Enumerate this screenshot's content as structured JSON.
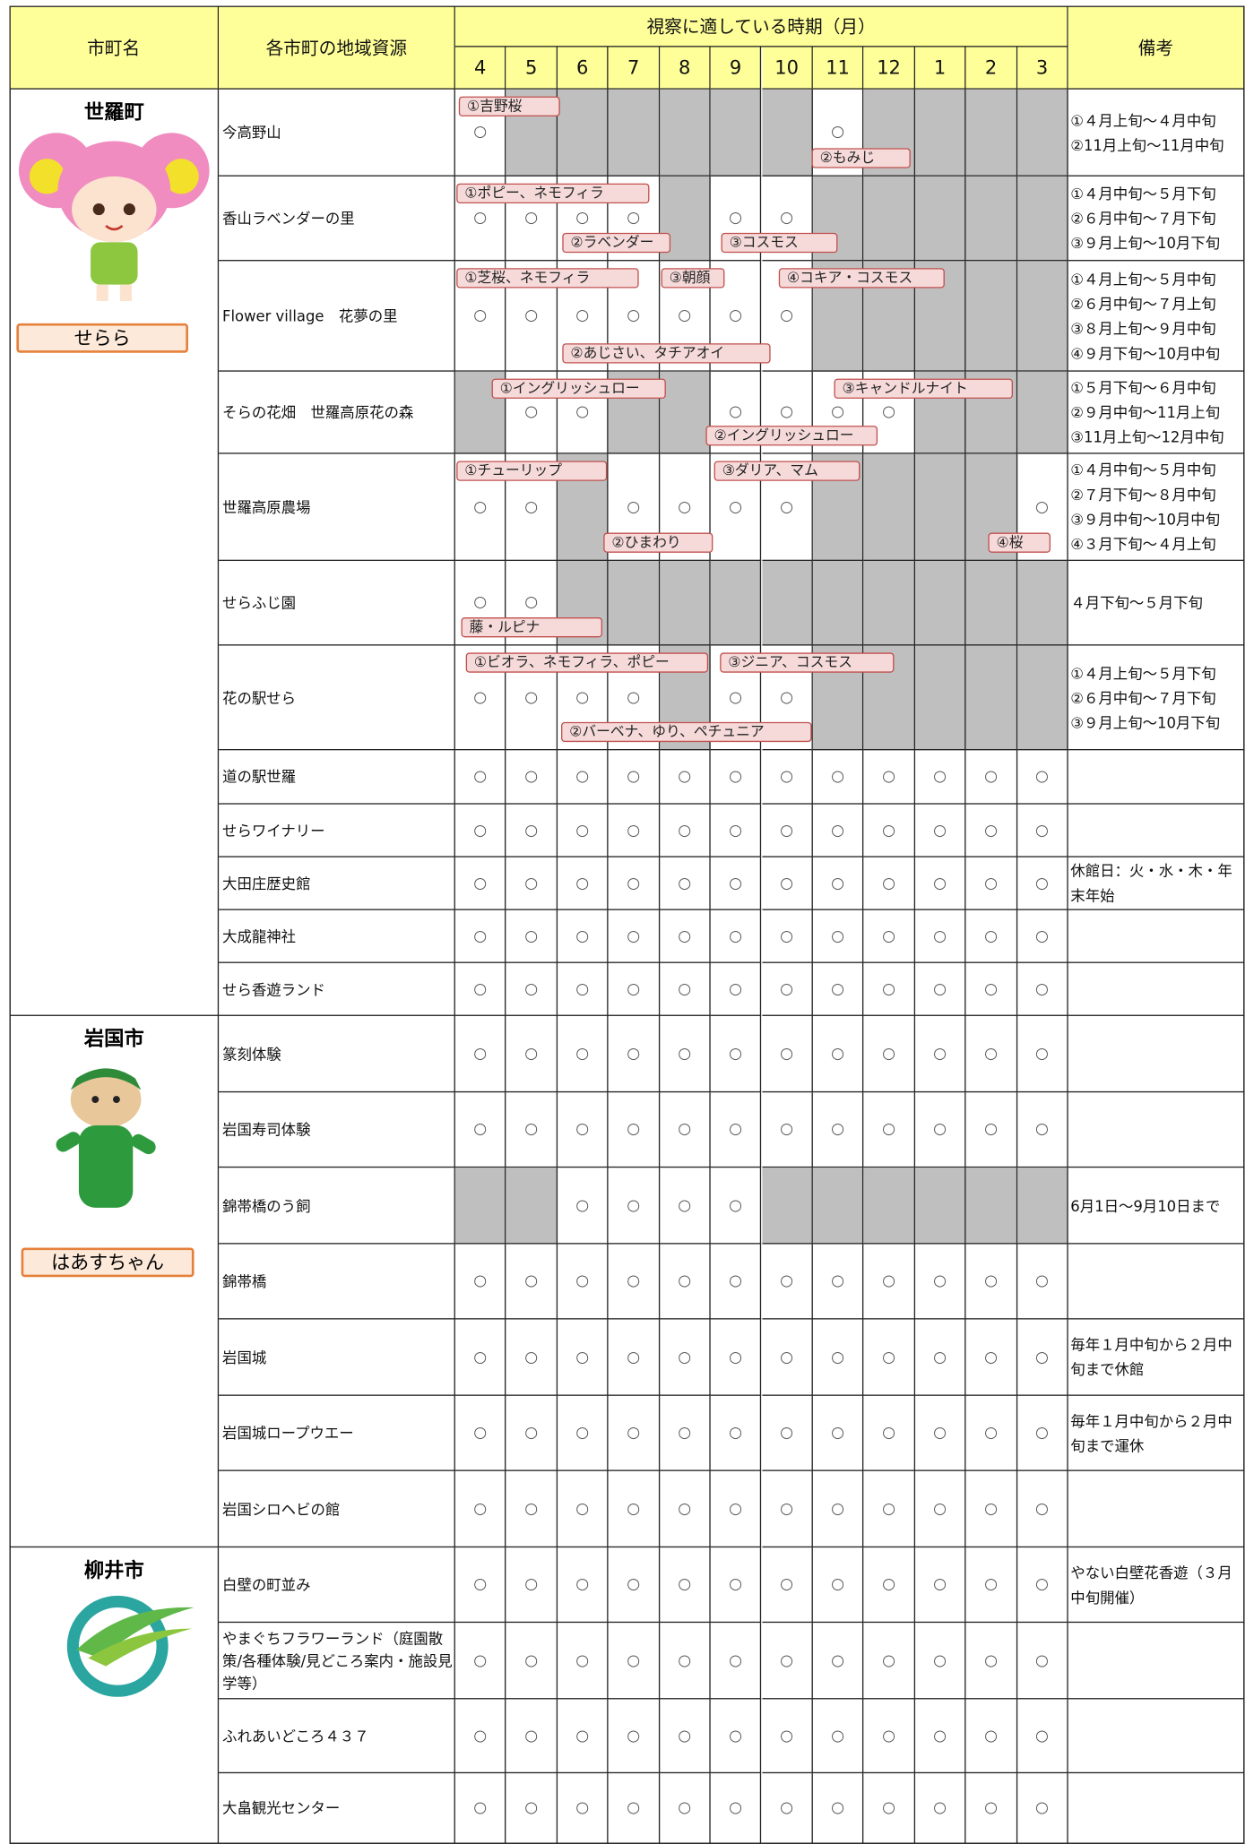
{
  "header": {
    "city": "市町名",
    "resource": "各市町の地域資源",
    "period": "視察に適している時期（月）",
    "months": [
      "4",
      "5",
      "6",
      "7",
      "8",
      "9",
      "10",
      "11",
      "12",
      "1",
      "2",
      "3"
    ],
    "remarks": "備考"
  },
  "cities": [
    {
      "name": "世羅町",
      "mascot": "せらら",
      "rows": [
        {
          "name": "今高野山",
          "marks": [
            "○",
            null,
            null,
            null,
            null,
            null,
            null,
            "○",
            null,
            null,
            null,
            null
          ],
          "shaded": [
            false,
            true,
            true,
            true,
            true,
            true,
            true,
            false,
            true,
            true,
            true,
            true
          ],
          "labels": [
            "①吉野桜",
            "②もみじ"
          ],
          "remarks": [
            "①４月上旬～４月中旬",
            "②11月上旬～11月中旬"
          ]
        },
        {
          "name": "香山ラベンダーの里",
          "marks": [
            "○",
            "○",
            "○",
            "○",
            null,
            "○",
            "○",
            null,
            null,
            null,
            null,
            null
          ],
          "shaded": [
            false,
            false,
            false,
            false,
            true,
            false,
            false,
            true,
            true,
            true,
            true,
            true
          ],
          "labels": [
            "①ポピー、ネモフィラ",
            "②ラベンダー",
            "③コスモス"
          ],
          "remarks": [
            "①４月中旬～５月下旬",
            "②６月中旬～７月下旬",
            "③９月上旬～10月下旬"
          ]
        },
        {
          "name": "Flower village　花夢の里",
          "marks": [
            "○",
            "○",
            "○",
            "○",
            "○",
            "○",
            "○",
            null,
            null,
            null,
            null,
            null
          ],
          "shaded": [
            false,
            false,
            false,
            false,
            false,
            false,
            false,
            true,
            true,
            true,
            true,
            true
          ],
          "labels": [
            "①芝桜、ネモフィラ",
            "②あじさい、タチアオイ",
            "③朝顔",
            "④コキア・コスモス"
          ],
          "remarks": [
            "①４月上旬～５月中旬",
            "②６月中旬～７月上旬",
            "③８月上旬～９月中旬",
            "④９月下旬～10月中旬"
          ]
        },
        {
          "name": "そらの花畑　世羅高原花の森",
          "marks": [
            null,
            "○",
            "○",
            null,
            null,
            "○",
            "○",
            "○",
            "○",
            null,
            null,
            null
          ],
          "shaded": [
            true,
            false,
            false,
            true,
            true,
            false,
            false,
            false,
            false,
            true,
            true,
            true
          ],
          "labels": [
            "①イングリッシュロー",
            "②イングリッシュロー",
            "③キャンドルナイト"
          ],
          "remarks": [
            "①５月下旬～６月中旬",
            "②９月中旬～11月上旬",
            "③11月上旬～12月中旬"
          ]
        },
        {
          "name": "世羅高原農場",
          "marks": [
            "○",
            "○",
            null,
            "○",
            "○",
            "○",
            "○",
            null,
            null,
            null,
            null,
            "○"
          ],
          "shaded": [
            false,
            false,
            true,
            false,
            false,
            false,
            false,
            true,
            true,
            true,
            true,
            false
          ],
          "labels": [
            "①チューリップ",
            "②ひまわり",
            "③ダリア、マム",
            "④桜"
          ],
          "remarks": [
            "①４月中旬～５月中旬",
            "②７月下旬～８月中旬",
            "③９月中旬～10月中旬",
            "④３月下旬～４月上旬"
          ]
        },
        {
          "name": "せらふじ園",
          "marks": [
            "○",
            "○",
            null,
            null,
            null,
            null,
            null,
            null,
            null,
            null,
            null,
            null
          ],
          "shaded": [
            false,
            false,
            true,
            true,
            true,
            true,
            true,
            true,
            true,
            true,
            true,
            true
          ],
          "labels": [
            "藤・ルピナ"
          ],
          "remarks": [
            "４月下旬～５月下旬"
          ]
        },
        {
          "name": "花の駅せら",
          "marks": [
            "○",
            "○",
            "○",
            "○",
            null,
            "○",
            "○",
            null,
            null,
            null,
            null,
            null
          ],
          "shaded": [
            false,
            false,
            false,
            false,
            true,
            false,
            false,
            true,
            true,
            true,
            true,
            true
          ],
          "labels": [
            "①ビオラ、ネモフィラ、ポピー",
            "②バーベナ、ゆり、ペチュニア",
            "③ジニア、コスモス"
          ],
          "remarks": [
            "①４月上旬～５月下旬",
            "②６月中旬～７月下旬",
            "③９月上旬～10月下旬"
          ]
        },
        {
          "name": "道の駅世羅",
          "marks": [
            "○",
            "○",
            "○",
            "○",
            "○",
            "○",
            "○",
            "○",
            "○",
            "○",
            "○",
            "○"
          ]
        },
        {
          "name": "せらワイナリー",
          "marks": [
            "○",
            "○",
            "○",
            "○",
            "○",
            "○",
            "○",
            "○",
            "○",
            "○",
            "○",
            "○"
          ]
        },
        {
          "name": "大田庄歴史館",
          "marks": [
            "○",
            "○",
            "○",
            "○",
            "○",
            "○",
            "○",
            "○",
            "○",
            "○",
            "○",
            "○"
          ],
          "remarks": [
            "休館日：火・水・木・年末年始"
          ]
        },
        {
          "name": "大成龍神社",
          "marks": [
            "○",
            "○",
            "○",
            "○",
            "○",
            "○",
            "○",
            "○",
            "○",
            "○",
            "○",
            "○"
          ]
        },
        {
          "name": "せら香遊ランド",
          "marks": [
            "○",
            "○",
            "○",
            "○",
            "○",
            "○",
            "○",
            "○",
            "○",
            "○",
            "○",
            "○"
          ]
        }
      ]
    },
    {
      "name": "岩国市",
      "mascot": "はあすちゃん",
      "rows": [
        {
          "name": "篆刻体験",
          "marks": [
            "○",
            "○",
            "○",
            "○",
            "○",
            "○",
            "○",
            "○",
            "○",
            "○",
            "○",
            "○"
          ]
        },
        {
          "name": "岩国寿司体験",
          "marks": [
            "○",
            "○",
            "○",
            "○",
            "○",
            "○",
            "○",
            "○",
            "○",
            "○",
            "○",
            "○"
          ]
        },
        {
          "name": "錦帯橋のう飼",
          "marks": [
            null,
            null,
            "○",
            "○",
            "○",
            "○",
            null,
            null,
            null,
            null,
            null,
            null
          ],
          "shaded": [
            true,
            true,
            false,
            false,
            false,
            false,
            true,
            true,
            true,
            true,
            true,
            true
          ],
          "remarks": [
            "6月1日～9月10日まで"
          ]
        },
        {
          "name": "錦帯橋",
          "marks": [
            "○",
            "○",
            "○",
            "○",
            "○",
            "○",
            "○",
            "○",
            "○",
            "○",
            "○",
            "○"
          ]
        },
        {
          "name": "岩国城",
          "marks": [
            "○",
            "○",
            "○",
            "○",
            "○",
            "○",
            "○",
            "○",
            "○",
            "○",
            "○",
            "○"
          ],
          "remarks": [
            "毎年１月中旬から２月中旬まで休館"
          ]
        },
        {
          "name": "岩国城ロープウエー",
          "marks": [
            "○",
            "○",
            "○",
            "○",
            "○",
            "○",
            "○",
            "○",
            "○",
            "○",
            "○",
            "○"
          ],
          "remarks": [
            "毎年１月中旬から２月中旬まで運休"
          ]
        },
        {
          "name": "岩国シロヘビの館",
          "marks": [
            "○",
            "○",
            "○",
            "○",
            "○",
            "○",
            "○",
            "○",
            "○",
            "○",
            "○",
            "○"
          ]
        }
      ]
    },
    {
      "name": "柳井市",
      "rows": [
        {
          "name": "白壁の町並み",
          "marks": [
            "○",
            "○",
            "○",
            "○",
            "○",
            "○",
            "○",
            "○",
            "○",
            "○",
            "○",
            "○"
          ],
          "remarks": [
            "やない白壁花香遊（３月中旬開催）"
          ]
        },
        {
          "name": "やまぐちフラワーランド（庭園散策/各種体験/見どころ案内・施設見学等）",
          "marks": [
            "○",
            "○",
            "○",
            "○",
            "○",
            "○",
            "○",
            "○",
            "○",
            "○",
            "○",
            "○"
          ]
        },
        {
          "name": "ふれあいどころ４３７",
          "marks": [
            "○",
            "○",
            "○",
            "○",
            "○",
            "○",
            "○",
            "○",
            "○",
            "○",
            "○",
            "○"
          ]
        },
        {
          "name": "大畠観光センター",
          "marks": [
            "○",
            "○",
            "○",
            "○",
            "○",
            "○",
            "○",
            "○",
            "○",
            "○",
            "○",
            "○"
          ]
        }
      ]
    }
  ]
}
